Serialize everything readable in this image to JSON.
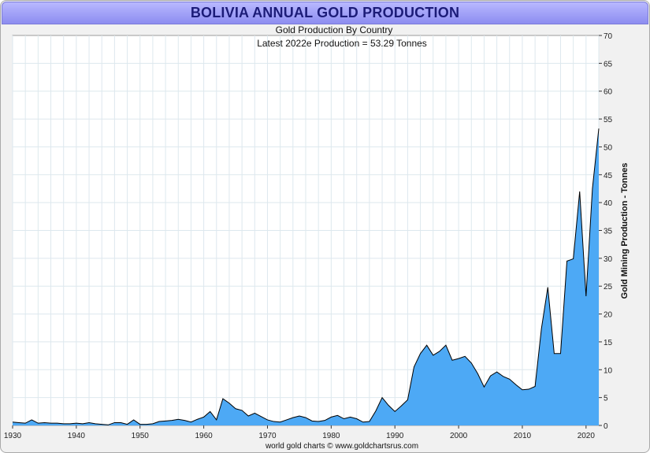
{
  "chart_data": {
    "type": "area",
    "title": "BOLIVIA ANNUAL GOLD PRODUCTION",
    "subtitle": "Gold Production By Country",
    "annotation": "Latest 2022e  Production = 53.29 Tonnes",
    "ylabel": "Gold Mining Production - Tonnes",
    "footer": "world gold charts © www.goldchartsrus.com",
    "xlim": [
      1930,
      2022
    ],
    "ylim": [
      0,
      70
    ],
    "x_ticks": [
      1930,
      1940,
      1950,
      1960,
      1970,
      1980,
      1990,
      2000,
      2010,
      2020
    ],
    "y_ticks": [
      0,
      5,
      10,
      15,
      20,
      25,
      30,
      35,
      40,
      45,
      50,
      55,
      60,
      65,
      70
    ],
    "y_axis_side": "right",
    "grid": true,
    "fill_color": "#4da9f5",
    "line_color": "#000000",
    "series": [
      {
        "x": [
          1930,
          1931,
          1932,
          1933,
          1934,
          1935,
          1936,
          1937,
          1938,
          1939,
          1940,
          1941,
          1942,
          1943,
          1944,
          1945,
          1946,
          1947,
          1948,
          1949,
          1950,
          1951,
          1952,
          1953,
          1954,
          1955,
          1956,
          1957,
          1958,
          1959,
          1960,
          1961,
          1962,
          1963,
          1964,
          1965,
          1966,
          1967,
          1968,
          1969,
          1970,
          1971,
          1972,
          1973,
          1974,
          1975,
          1976,
          1977,
          1978,
          1979,
          1980,
          1981,
          1982,
          1983,
          1984,
          1985,
          1986,
          1987,
          1988,
          1989,
          1990,
          1991,
          1992,
          1993,
          1994,
          1995,
          1996,
          1997,
          1998,
          1999,
          2000,
          2001,
          2002,
          2003,
          2004,
          2005,
          2006,
          2007,
          2008,
          2009,
          2010,
          2011,
          2012,
          2013,
          2014,
          2015,
          2016,
          2017,
          2018,
          2019,
          2020,
          2021,
          2022
        ],
        "values": [
          0.6,
          0.5,
          0.4,
          1.0,
          0.4,
          0.5,
          0.4,
          0.4,
          0.3,
          0.3,
          0.4,
          0.3,
          0.5,
          0.3,
          0.2,
          0.1,
          0.5,
          0.5,
          0.2,
          1.0,
          0.2,
          0.2,
          0.3,
          0.7,
          0.8,
          0.9,
          1.1,
          0.9,
          0.6,
          1.1,
          1.5,
          2.5,
          1.0,
          4.8,
          4.0,
          3.0,
          2.7,
          1.7,
          2.2,
          1.6,
          1.0,
          0.7,
          0.6,
          1.0,
          1.4,
          1.7,
          1.4,
          0.8,
          0.7,
          0.9,
          1.5,
          1.8,
          1.2,
          1.5,
          1.2,
          0.6,
          0.7,
          2.6,
          5.0,
          3.6,
          2.5,
          3.5,
          4.6,
          10.5,
          12.9,
          14.4,
          12.6,
          13.3,
          14.4,
          11.7,
          12.0,
          12.4,
          11.2,
          9.3,
          6.9,
          8.9,
          9.6,
          8.8,
          8.3,
          7.3,
          6.4,
          6.5,
          7.0,
          17.4,
          24.8,
          12.9,
          12.9,
          29.5,
          29.9,
          42.0,
          23.2,
          42.5,
          53.29
        ]
      }
    ]
  }
}
